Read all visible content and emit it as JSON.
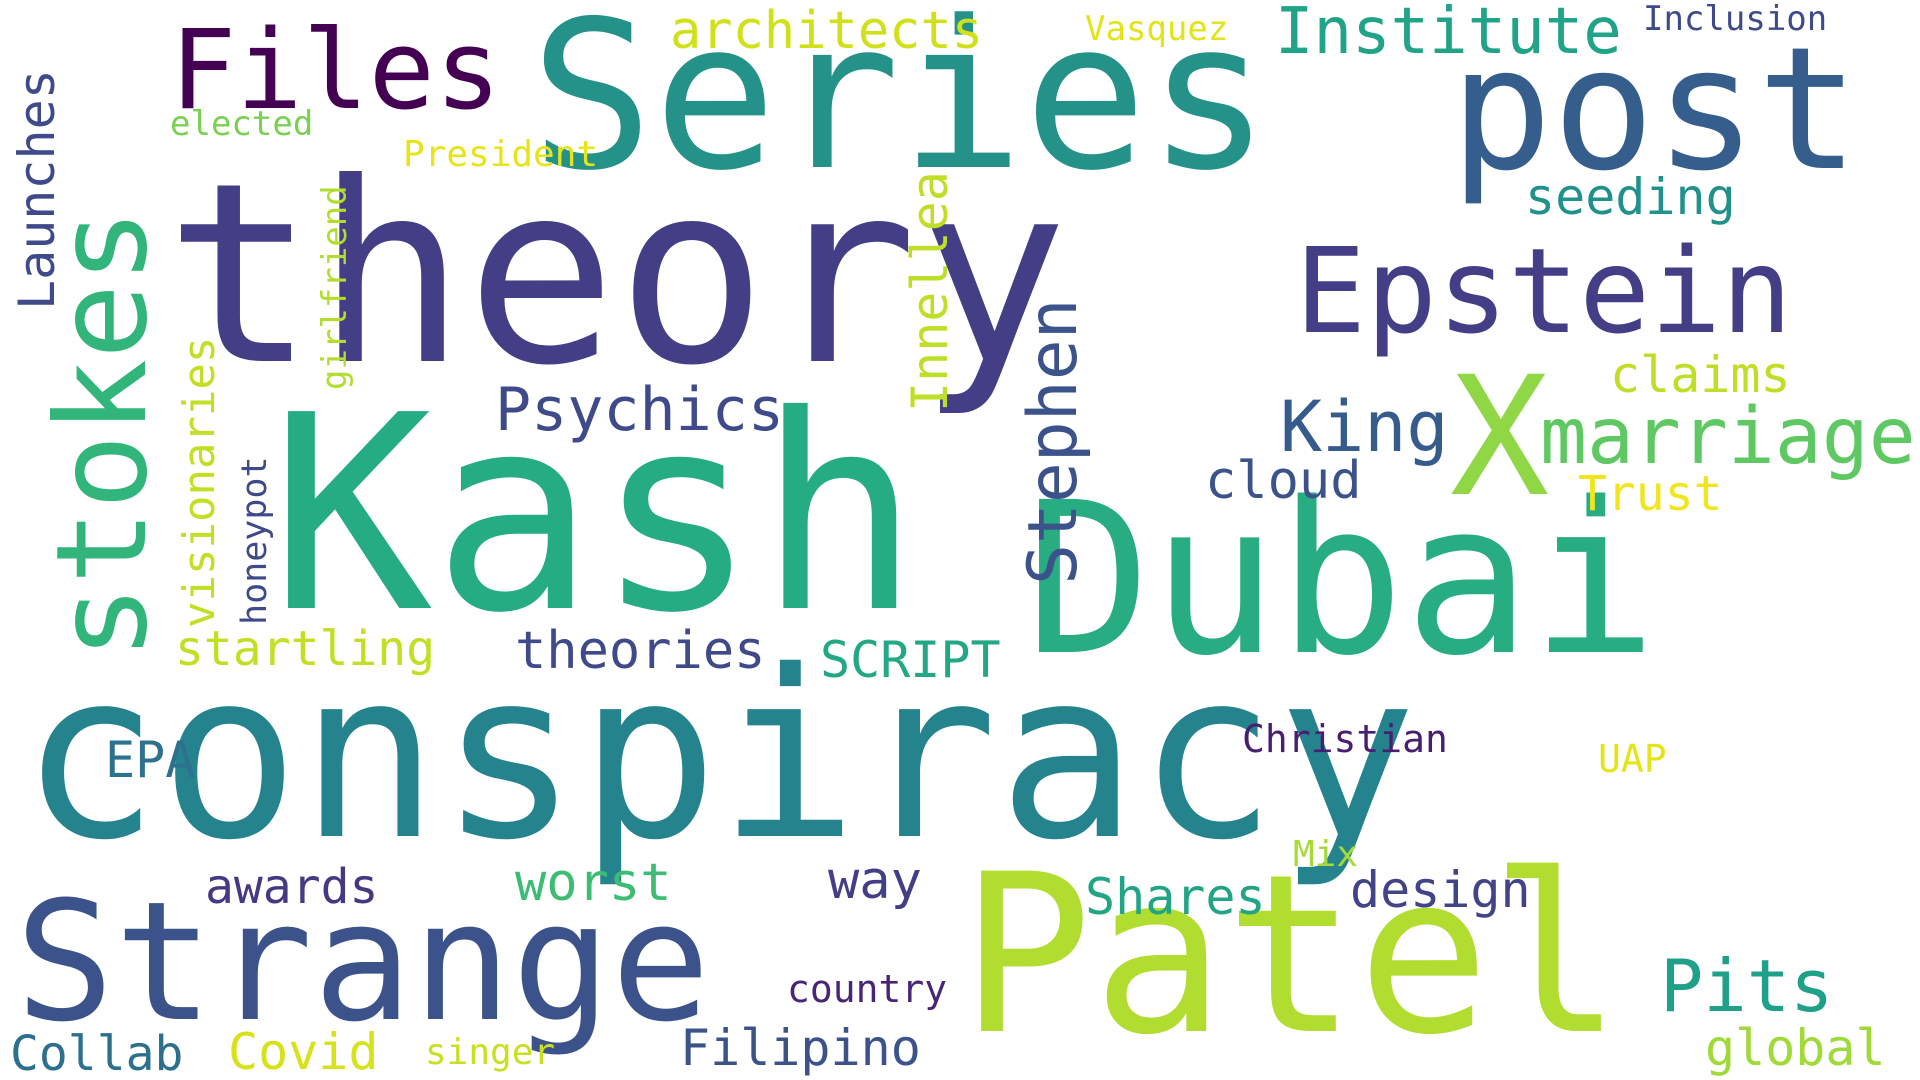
{
  "palette": [
    "#440154",
    "#443a83",
    "#3b528b",
    "#2c728e",
    "#21918c",
    "#28ae80",
    "#5ec962",
    "#addc30",
    "#fde725"
  ],
  "words": [
    {
      "text": "conspiracy",
      "color": "#25838e",
      "orientation": "horizontal"
    },
    {
      "text": "theory",
      "color": "#433e85",
      "orientation": "horizontal"
    },
    {
      "text": "Kash",
      "color": "#25ac82",
      "orientation": "horizontal"
    },
    {
      "text": "Series",
      "color": "#25928a",
      "orientation": "horizontal"
    },
    {
      "text": "Patel",
      "color": "#b0dd2f",
      "orientation": "horizontal"
    },
    {
      "text": "Dubai",
      "color": "#27ad81",
      "orientation": "horizontal"
    },
    {
      "text": "post",
      "color": "#355e8d",
      "orientation": "horizontal"
    },
    {
      "text": "stokes",
      "color": "#31b57b",
      "orientation": "vertical"
    },
    {
      "text": "Strange",
      "color": "#3b528b",
      "orientation": "horizontal"
    },
    {
      "text": "Epstein",
      "color": "#433e85",
      "orientation": "horizontal"
    },
    {
      "text": "Files",
      "color": "#440154",
      "orientation": "horizontal"
    },
    {
      "text": "X",
      "color": "#8fd744",
      "orientation": "horizontal"
    },
    {
      "text": "marriage",
      "color": "#5ec962",
      "orientation": "horizontal"
    },
    {
      "text": "Stephen",
      "color": "#3b528b",
      "orientation": "vertical"
    },
    {
      "text": "Institute",
      "color": "#20a386",
      "orientation": "horizontal"
    },
    {
      "text": "King",
      "color": "#365c8d",
      "orientation": "horizontal"
    },
    {
      "text": "Psychics",
      "color": "#3e4a89",
      "orientation": "horizontal"
    },
    {
      "text": "architects",
      "color": "#d0e11c",
      "orientation": "horizontal"
    },
    {
      "text": "Pits",
      "color": "#1fa088",
      "orientation": "horizontal"
    },
    {
      "text": "Launches",
      "color": "#3e4a89",
      "orientation": "vertical"
    },
    {
      "text": "seeding",
      "color": "#21918c",
      "orientation": "horizontal"
    },
    {
      "text": "claims",
      "color": "#bddf26",
      "orientation": "horizontal"
    },
    {
      "text": "Innellea",
      "color": "#bddf26",
      "orientation": "vertical"
    },
    {
      "text": "visionaries",
      "color": "#c2df23",
      "orientation": "vertical"
    },
    {
      "text": "cloud",
      "color": "#3b528b",
      "orientation": "horizontal"
    },
    {
      "text": "Trust",
      "color": "#f1e51d",
      "orientation": "horizontal"
    },
    {
      "text": "startling",
      "color": "#c2df23",
      "orientation": "horizontal"
    },
    {
      "text": "theories",
      "color": "#3e4a89",
      "orientation": "horizontal"
    },
    {
      "text": "SCRIPT",
      "color": "#22a884",
      "orientation": "horizontal"
    },
    {
      "text": "EPA",
      "color": "#2c718e",
      "orientation": "horizontal"
    },
    {
      "text": "awards",
      "color": "#443a83",
      "orientation": "horizontal"
    },
    {
      "text": "worst",
      "color": "#3dbc74",
      "orientation": "horizontal"
    },
    {
      "text": "way",
      "color": "#433e85",
      "orientation": "horizontal"
    },
    {
      "text": "Shares",
      "color": "#21a585",
      "orientation": "horizontal"
    },
    {
      "text": "design",
      "color": "#414487",
      "orientation": "horizontal"
    },
    {
      "text": "Collab",
      "color": "#2d708e",
      "orientation": "horizontal"
    },
    {
      "text": "Covid",
      "color": "#d8e219",
      "orientation": "horizontal"
    },
    {
      "text": "Filipino",
      "color": "#3b528b",
      "orientation": "horizontal"
    },
    {
      "text": "global",
      "color": "#a0da39",
      "orientation": "horizontal"
    },
    {
      "text": "country",
      "color": "#482677",
      "orientation": "horizontal"
    },
    {
      "text": "Christian",
      "color": "#481f70",
      "orientation": "horizontal"
    },
    {
      "text": "UAP",
      "color": "#e5e419",
      "orientation": "horizontal"
    },
    {
      "text": "Mix",
      "color": "#a5db36",
      "orientation": "horizontal"
    },
    {
      "text": "singer",
      "color": "#c8e020",
      "orientation": "horizontal"
    },
    {
      "text": "honeypot",
      "color": "#3e4a89",
      "orientation": "vertical"
    },
    {
      "text": "girlfriend",
      "color": "#b2dd2d",
      "orientation": "vertical"
    },
    {
      "text": "President",
      "color": "#e7e419",
      "orientation": "horizontal"
    },
    {
      "text": "elected",
      "color": "#7ad151",
      "orientation": "horizontal"
    },
    {
      "text": "Vasquez",
      "color": "#e2e418",
      "orientation": "horizontal"
    },
    {
      "text": "Inclusion",
      "color": "#3e4a89",
      "orientation": "horizontal"
    }
  ]
}
